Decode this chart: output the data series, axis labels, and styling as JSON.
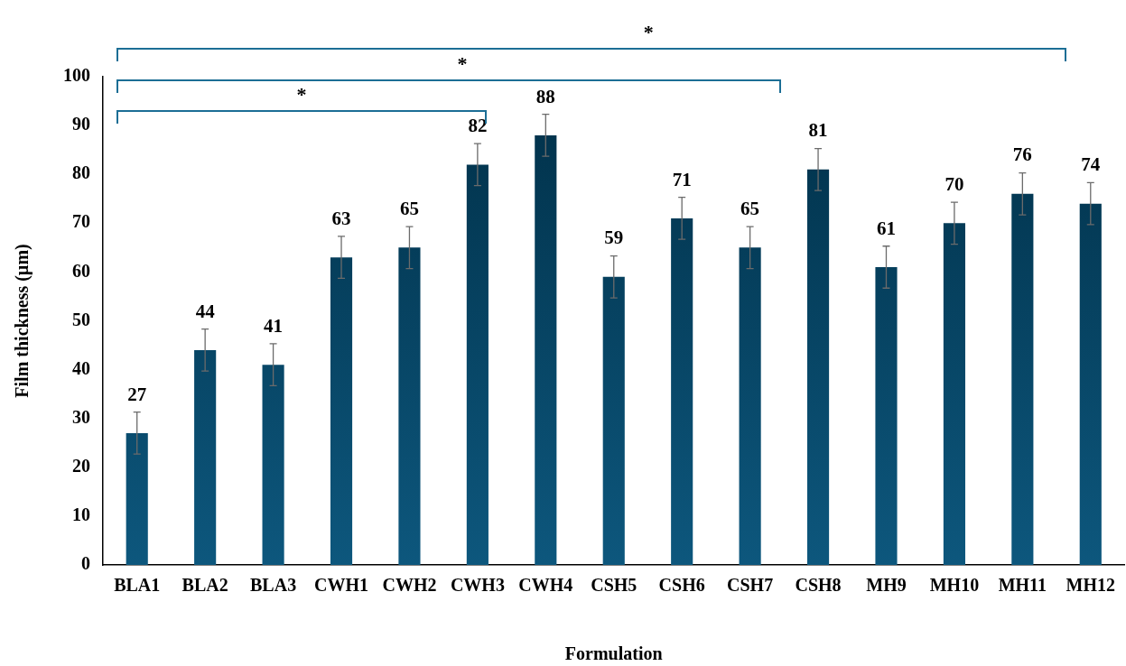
{
  "chart_data": {
    "type": "bar",
    "xlabel": "Formulation",
    "ylabel": "Film thickness (µm)",
    "categories": [
      "BLA1",
      "BLA2",
      "BLA3",
      "CWH1",
      "CWH2",
      "CWH3",
      "CWH4",
      "CSH5",
      "CSH6",
      "CSH7",
      "CSH8",
      "MH9",
      "MH10",
      "MH11",
      "MH12"
    ],
    "values": [
      27,
      44,
      41,
      63,
      65,
      82,
      88,
      59,
      71,
      65,
      81,
      61,
      70,
      76,
      74
    ],
    "errors": [
      4.3,
      4.3,
      4.3,
      4.3,
      4.3,
      4.3,
      4.3,
      4.3,
      4.3,
      4.3,
      4.3,
      4.3,
      4.3,
      4.3,
      4.3
    ],
    "color": "#004e76",
    "ylim": [
      0,
      100
    ],
    "yticks": [
      0,
      10,
      20,
      30,
      40,
      50,
      60,
      70,
      80,
      90,
      100
    ],
    "grid": false,
    "legend": false,
    "data_labels": true,
    "annotations": [
      "*",
      "*",
      "*"
    ]
  }
}
